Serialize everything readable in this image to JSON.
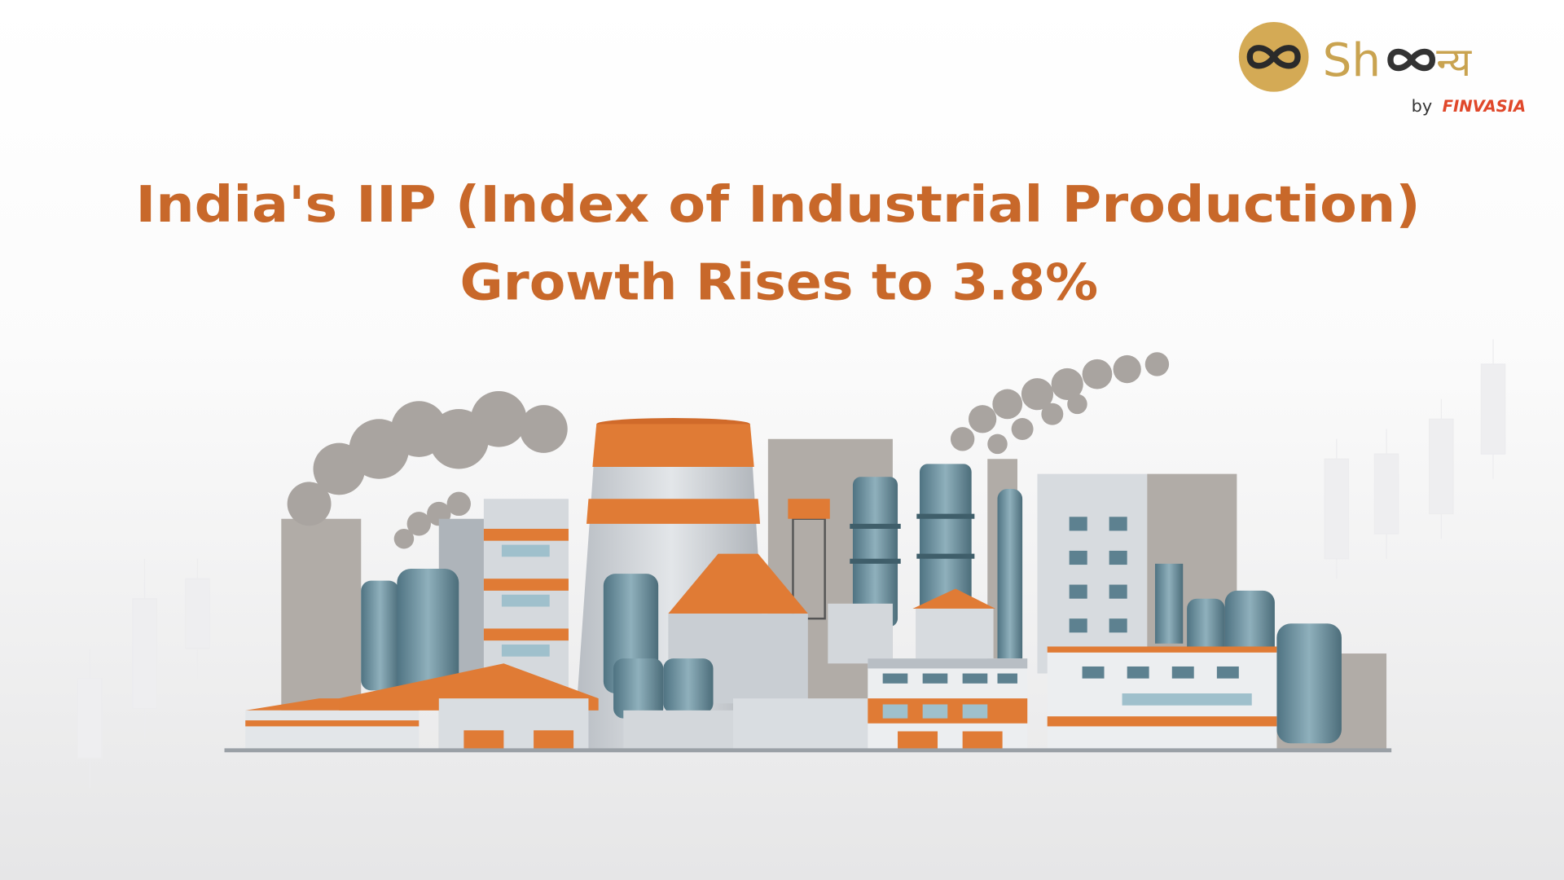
{
  "logo": {
    "brand_start": "Sh",
    "brand_end": "न्य",
    "by": "by",
    "company": "FINVASIA"
  },
  "headline": {
    "line1": "India's IIP (Index of Industrial Production)",
    "line2": "Growth Rises to 3.8%"
  }
}
